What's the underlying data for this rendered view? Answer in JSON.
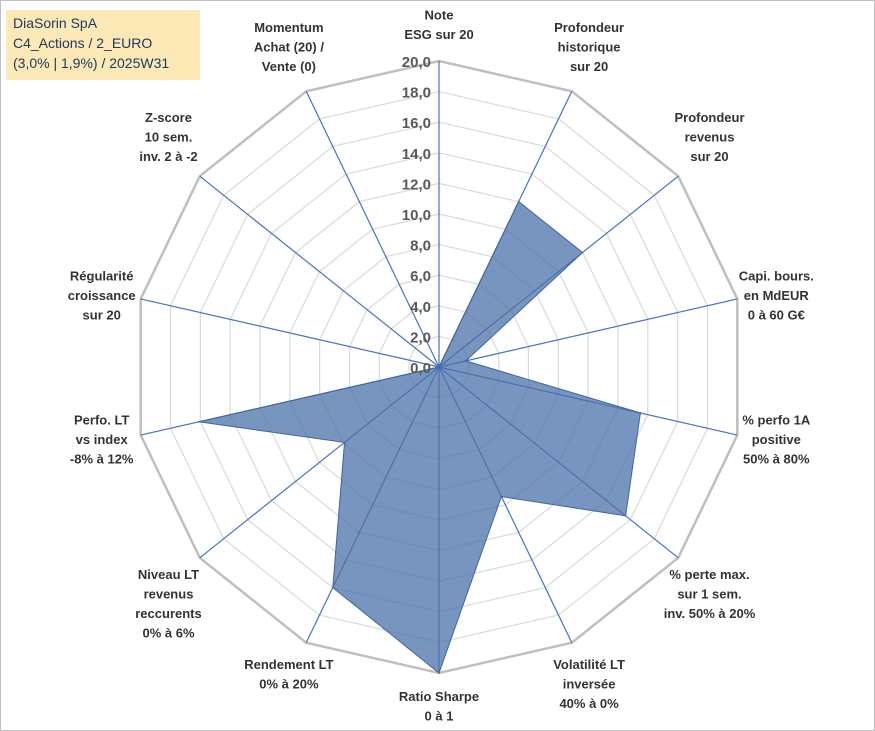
{
  "header": {
    "lines": [
      "DiaSorin SpA",
      "C4_Actions / 2_EURO",
      "(3,0% | 1,9%) / 2025W31"
    ],
    "background": "#fde9b5"
  },
  "chart_data": {
    "type": "radar",
    "title": "",
    "rmin": 0,
    "rmax": 20,
    "tick_step": 2,
    "ticks": [
      "0,0",
      "2,0",
      "4,0",
      "6,0",
      "8,0",
      "10,0",
      "12,0",
      "14,0",
      "16,0",
      "18,0",
      "20,0"
    ],
    "grid": true,
    "fill_color": "#4a72a8",
    "axis_color": "#4472c4",
    "grid_color": "#d9d9d9",
    "axes": [
      {
        "label": [
          "Note",
          "ESG sur 20"
        ]
      },
      {
        "label": [
          "Profondeur",
          "historique",
          "sur 20"
        ]
      },
      {
        "label": [
          "Profondeur",
          "revenus",
          "sur 20"
        ]
      },
      {
        "label": [
          "Capi. bours.",
          "en MdEUR",
          "0 à 60 G€"
        ]
      },
      {
        "label": [
          "% perfo 1A",
          "positive",
          "50% à 80%"
        ]
      },
      {
        "label": [
          "% perte max.",
          "sur 1 sem.",
          "inv. 50% à 20%"
        ]
      },
      {
        "label": [
          "Volatilité LT",
          "inversée",
          "40% à 0%"
        ]
      },
      {
        "label": [
          "Ratio Sharpe",
          "0 à 1"
        ]
      },
      {
        "label": [
          "Rendement LT",
          "0% à 20%"
        ]
      },
      {
        "label": [
          "Niveau LT",
          "revenus",
          "reccurents",
          "0% à 6%"
        ]
      },
      {
        "label": [
          "Perfo. LT",
          "vs index",
          "-8% à 12%"
        ]
      },
      {
        "label": [
          "Régularité",
          "croissance",
          "sur 20"
        ]
      },
      {
        "label": [
          "Z-score",
          "10 sem.",
          "inv. 2 à -2"
        ]
      },
      {
        "label": [
          "Momentum",
          "Achat (20) /",
          "Vente (0)"
        ]
      }
    ],
    "series": [
      {
        "values": [
          0.0,
          12.0,
          12.0,
          1.8,
          13.5,
          15.6,
          9.4,
          20.0,
          16.0,
          7.9,
          16.1,
          0.0,
          0.0,
          0.0
        ]
      }
    ]
  }
}
